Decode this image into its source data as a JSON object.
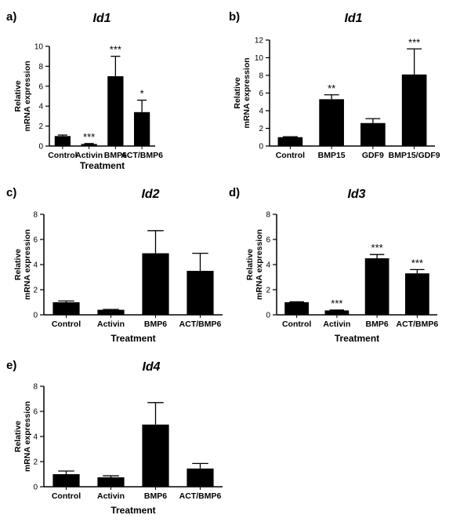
{
  "chart_data": [
    {
      "panel": "a)",
      "type": "bar",
      "title": "Id1",
      "ylabel": [
        "Relative",
        "mRNA expression"
      ],
      "xlabel": "Treatment",
      "categories": [
        "Control",
        "Activin",
        "BMP6",
        "ACT/BMP6"
      ],
      "values": [
        1.0,
        0.2,
        7.0,
        3.4
      ],
      "errors": [
        0.1,
        0.05,
        2.0,
        1.2
      ],
      "significance": [
        "",
        "***",
        "***",
        "*"
      ],
      "ylim": [
        0,
        10
      ],
      "yticks": [
        0,
        2,
        4,
        6,
        8,
        10
      ]
    },
    {
      "panel": "b)",
      "type": "bar",
      "title": "Id1",
      "ylabel": [
        "Relative",
        "mRNA expression"
      ],
      "xlabel": "",
      "categories": [
        "Control",
        "BMP15",
        "GDF9",
        "BMP15/GDF9"
      ],
      "values": [
        1.0,
        5.3,
        2.6,
        8.1
      ],
      "errors": [
        0.05,
        0.5,
        0.5,
        2.9
      ],
      "significance": [
        "",
        "**",
        "",
        "***"
      ],
      "ylim": [
        0,
        12
      ],
      "yticks": [
        0,
        2,
        4,
        6,
        8,
        10,
        12
      ]
    },
    {
      "panel": "c)",
      "type": "bar",
      "title": "Id2",
      "ylabel": [
        "Relative",
        "mRNA expression"
      ],
      "xlabel": "Treatment",
      "categories": [
        "Control",
        "Activin",
        "BMP6",
        "ACT/BMP6"
      ],
      "values": [
        1.0,
        0.4,
        4.9,
        3.5
      ],
      "errors": [
        0.1,
        0.03,
        1.8,
        1.4
      ],
      "significance": [
        "",
        "",
        "",
        ""
      ],
      "ylim": [
        0,
        8
      ],
      "yticks": [
        0,
        2,
        4,
        6,
        8
      ]
    },
    {
      "panel": "d)",
      "type": "bar",
      "title": "Id3",
      "ylabel": [
        "Relative",
        "mRNA expression"
      ],
      "xlabel": "Treatment",
      "categories": [
        "Control",
        "Activin",
        "BMP6",
        "ACT/BMP6"
      ],
      "values": [
        1.0,
        0.35,
        4.5,
        3.3
      ],
      "errors": [
        0.04,
        0.03,
        0.3,
        0.3
      ],
      "significance": [
        "",
        "***",
        "***",
        "***"
      ],
      "ylim": [
        0,
        8
      ],
      "yticks": [
        0,
        2,
        4,
        6,
        8
      ]
    },
    {
      "panel": "e)",
      "type": "bar",
      "title": "Id4",
      "ylabel": [
        "Relative",
        "mRNA expression"
      ],
      "xlabel": "Treatment",
      "categories": [
        "Control",
        "Activin",
        "BMP6",
        "ACT/BMP6"
      ],
      "values": [
        1.0,
        0.75,
        4.95,
        1.45
      ],
      "errors": [
        0.25,
        0.12,
        1.75,
        0.4
      ],
      "significance": [
        "",
        "",
        "",
        ""
      ],
      "ylim": [
        0,
        8
      ],
      "yticks": [
        0,
        2,
        4,
        6,
        8
      ]
    }
  ]
}
